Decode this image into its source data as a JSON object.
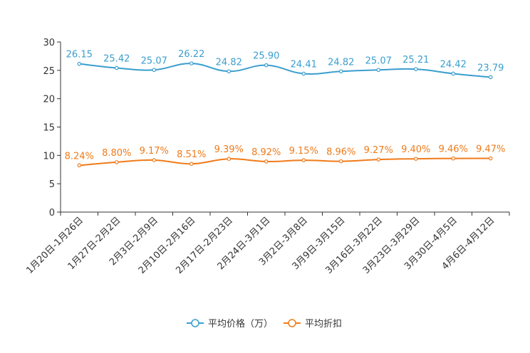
{
  "chart_data": {
    "type": "line",
    "categories": [
      "1月20日-1月26日",
      "1月27日-2月2日",
      "2月3日-2月9日",
      "2月10日-2月16日",
      "2月17日-2月23日",
      "2月24日-3月1日",
      "3月2日-3月8日",
      "3月9日-3月15日",
      "3月16日-3月22日",
      "3月23日-3月29日",
      "3月30日-4月5日",
      "4月6日-4月12日"
    ],
    "ylim": [
      0,
      30
    ],
    "yticks": [
      0,
      5,
      10,
      15,
      20,
      25,
      30
    ],
    "series": [
      {
        "name": "平均价格（万）",
        "color": "#3a9ecf",
        "values": [
          26.15,
          25.42,
          25.07,
          26.22,
          24.82,
          25.9,
          24.41,
          24.82,
          25.07,
          25.21,
          24.42,
          23.79
        ],
        "labels": [
          "26.15",
          "25.42",
          "25.07",
          "26.22",
          "24.82",
          "25.90",
          "24.41",
          "24.82",
          "25.07",
          "25.21",
          "24.42",
          "23.79"
        ]
      },
      {
        "name": "平均折扣",
        "color": "#f07b1a",
        "values": [
          8.24,
          8.8,
          9.17,
          8.51,
          9.39,
          8.92,
          9.15,
          8.96,
          9.27,
          9.4,
          9.46,
          9.47
        ],
        "labels": [
          "8.24%",
          "8.80%",
          "9.17%",
          "8.51%",
          "9.39%",
          "8.92%",
          "9.15%",
          "8.96%",
          "9.27%",
          "9.40%",
          "9.46%",
          "9.47%"
        ]
      }
    ],
    "legend_position": "bottom-center",
    "grid": false
  }
}
